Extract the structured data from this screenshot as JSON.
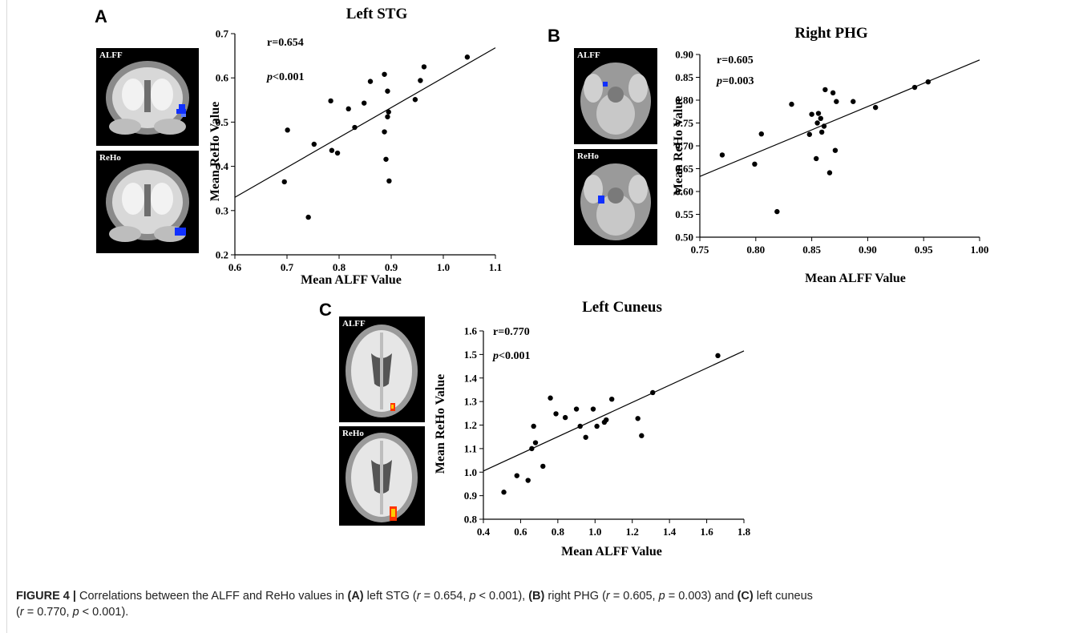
{
  "panels": [
    {
      "letter": "A",
      "images": [
        {
          "label": "ALFF",
          "view": "coronal",
          "blob_color": "#1030ff"
        },
        {
          "label": "ReHo",
          "view": "coronal",
          "blob_color": "#1030ff"
        }
      ],
      "stats": {
        "r": "r=0.654",
        "p_sym": "p",
        "p_rest": "<0.001"
      }
    },
    {
      "letter": "B",
      "images": [
        {
          "label": "ALFF",
          "view": "axial-temporal",
          "blob_color": "#1030ff"
        },
        {
          "label": "ReHo",
          "view": "axial-temporal",
          "blob_color": "#1030ff"
        }
      ],
      "stats": {
        "r": "r=0.605",
        "p_sym": "p",
        "p_rest": "=0.003"
      }
    },
    {
      "letter": "C",
      "images": [
        {
          "label": "ALFF",
          "view": "axial",
          "blob_color": "#ff3300"
        },
        {
          "label": "ReHo",
          "view": "axial",
          "blob_color": "#ff3300"
        }
      ],
      "stats": {
        "r": "r=0.770",
        "p_sym": "p",
        "p_rest": "<0.001"
      }
    }
  ],
  "chart_data": [
    {
      "type": "scatter",
      "title": "Left STG",
      "xlabel": "Mean ALFF Value",
      "ylabel": "Mean ReHo Value",
      "xlim": [
        0.6,
        1.1
      ],
      "ylim": [
        0.2,
        0.7
      ],
      "xticks": [
        "0.6",
        "0.7",
        "0.8",
        "0.9",
        "1.0",
        "1.1"
      ],
      "yticks": [
        "0.2",
        "0.3",
        "0.4",
        "0.5",
        "0.6",
        "0.7"
      ],
      "points": [
        [
          0.695,
          0.365
        ],
        [
          0.701,
          0.482
        ],
        [
          0.741,
          0.285
        ],
        [
          0.752,
          0.45
        ],
        [
          0.784,
          0.548
        ],
        [
          0.786,
          0.436
        ],
        [
          0.797,
          0.43
        ],
        [
          0.818,
          0.53
        ],
        [
          0.83,
          0.488
        ],
        [
          0.848,
          0.543
        ],
        [
          0.86,
          0.592
        ],
        [
          0.887,
          0.608
        ],
        [
          0.887,
          0.478
        ],
        [
          0.89,
          0.416
        ],
        [
          0.893,
          0.57
        ],
        [
          0.893,
          0.512
        ],
        [
          0.895,
          0.523
        ],
        [
          0.896,
          0.367
        ],
        [
          0.946,
          0.551
        ],
        [
          0.956,
          0.594
        ],
        [
          0.963,
          0.625
        ],
        [
          1.046,
          0.647
        ]
      ],
      "fit": [
        [
          0.6,
          0.33
        ],
        [
          1.1,
          0.668
        ]
      ]
    },
    {
      "type": "scatter",
      "title": "Right PHG",
      "xlabel": "Mean ALFF Value",
      "ylabel": "Mean ReHo Value",
      "xlim": [
        0.75,
        1.0
      ],
      "ylim": [
        0.5,
        0.9
      ],
      "xticks": [
        "0.75",
        "0.80",
        "0.85",
        "0.90",
        "0.95",
        "1.00"
      ],
      "yticks": [
        "0.50",
        "0.55",
        "0.60",
        "0.65",
        "0.70",
        "0.75",
        "0.80",
        "0.85",
        "0.90"
      ],
      "points": [
        [
          0.77,
          0.68
        ],
        [
          0.799,
          0.66
        ],
        [
          0.805,
          0.726
        ],
        [
          0.819,
          0.556
        ],
        [
          0.832,
          0.791
        ],
        [
          0.848,
          0.725
        ],
        [
          0.85,
          0.769
        ],
        [
          0.854,
          0.672
        ],
        [
          0.855,
          0.75
        ],
        [
          0.856,
          0.771
        ],
        [
          0.858,
          0.76
        ],
        [
          0.859,
          0.73
        ],
        [
          0.861,
          0.743
        ],
        [
          0.862,
          0.823
        ],
        [
          0.866,
          0.641
        ],
        [
          0.869,
          0.816
        ],
        [
          0.871,
          0.69
        ],
        [
          0.872,
          0.797
        ],
        [
          0.887,
          0.797
        ],
        [
          0.907,
          0.784
        ],
        [
          0.942,
          0.828
        ],
        [
          0.954,
          0.84
        ]
      ],
      "fit": [
        [
          0.75,
          0.633
        ],
        [
          1.0,
          0.888
        ]
      ]
    },
    {
      "type": "scatter",
      "title": "Left Cuneus",
      "xlabel": "Mean ALFF Value",
      "ylabel": "Mean ReHo Value",
      "xlim": [
        0.4,
        1.8
      ],
      "ylim": [
        0.8,
        1.6
      ],
      "xticks": [
        "0.4",
        "0.6",
        "0.8",
        "1.0",
        "1.2",
        "1.4",
        "1.6",
        "1.8"
      ],
      "yticks": [
        "0.8",
        "0.9",
        "1.0",
        "1.1",
        "1.2",
        "1.3",
        "1.4",
        "1.5",
        "1.6"
      ],
      "points": [
        [
          0.51,
          0.915
        ],
        [
          0.58,
          0.985
        ],
        [
          0.64,
          0.965
        ],
        [
          0.66,
          1.1
        ],
        [
          0.67,
          1.195
        ],
        [
          0.68,
          1.125
        ],
        [
          0.72,
          1.025
        ],
        [
          0.76,
          1.315
        ],
        [
          0.79,
          1.248
        ],
        [
          0.84,
          1.232
        ],
        [
          0.9,
          1.268
        ],
        [
          0.92,
          1.195
        ],
        [
          0.95,
          1.148
        ],
        [
          0.99,
          1.268
        ],
        [
          1.01,
          1.195
        ],
        [
          1.05,
          1.212
        ],
        [
          1.06,
          1.222
        ],
        [
          1.09,
          1.31
        ],
        [
          1.23,
          1.228
        ],
        [
          1.25,
          1.155
        ],
        [
          1.31,
          1.338
        ],
        [
          1.66,
          1.495
        ]
      ],
      "fit": [
        [
          0.4,
          1.005
        ],
        [
          1.8,
          1.515
        ]
      ]
    }
  ],
  "caption": {
    "figure": "FIGURE 4 |",
    "t1": " Correlations between the ALFF and ReHo values in ",
    "a": "(A)",
    "t2": " left STG (",
    "r1": "r",
    "t3": " = 0.654, ",
    "p1": "p",
    "t4": " < 0.001), ",
    "b": "(B)",
    "t5": " right PHG (",
    "r2": "r",
    "t6": " = 0.605, ",
    "p2": "p",
    "t7": " = 0.003) and ",
    "c": "(C)",
    "t8": " left cuneus",
    "t9": "(",
    "r3": "r",
    "t10": " = 0.770, ",
    "p3": "p",
    "t11": " < 0.001)."
  }
}
